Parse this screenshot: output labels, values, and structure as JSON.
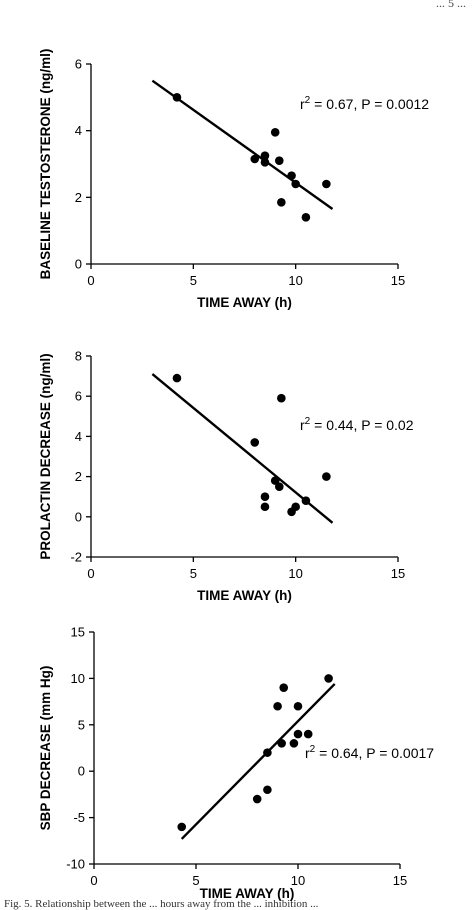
{
  "top_fragment": "... 5 ...",
  "caption_fragment": "Fig. 5. Relationship between the ... hours away from the ... inhibition ...",
  "chart_data": [
    {
      "type": "scatter",
      "title": "",
      "xlabel": "TIME AWAY (h)",
      "ylabel": "BASELINE TESTOSTERONE (ng/ml)",
      "xlim": [
        0,
        15
      ],
      "ylim": [
        0,
        6
      ],
      "xticks": [
        0,
        5,
        10,
        15
      ],
      "yticks": [
        0,
        2,
        4,
        6
      ],
      "annotation": {
        "pre": "r",
        "sup": "2",
        "post": " = 0.67, P = 0.0012"
      },
      "points": [
        {
          "x": 4.2,
          "y": 5.0
        },
        {
          "x": 8.0,
          "y": 3.15
        },
        {
          "x": 8.5,
          "y": 3.25
        },
        {
          "x": 8.5,
          "y": 3.05
        },
        {
          "x": 9.0,
          "y": 3.95
        },
        {
          "x": 9.2,
          "y": 3.1
        },
        {
          "x": 9.3,
          "y": 1.85
        },
        {
          "x": 9.8,
          "y": 2.65
        },
        {
          "x": 10.0,
          "y": 2.4
        },
        {
          "x": 10.5,
          "y": 1.4
        },
        {
          "x": 11.5,
          "y": 2.4
        }
      ],
      "fit": {
        "x": [
          3.0,
          11.8
        ],
        "y": [
          5.5,
          1.65
        ]
      },
      "grid": false,
      "legend": "none"
    },
    {
      "type": "scatter",
      "title": "",
      "xlabel": "TIME AWAY (h)",
      "ylabel": "PROLACTIN DECREASE (ng/ml)",
      "xlim": [
        0,
        15
      ],
      "ylim": [
        -2,
        8
      ],
      "xticks": [
        0,
        5,
        10,
        15
      ],
      "yticks": [
        -2,
        0,
        2,
        4,
        6,
        8
      ],
      "annotation": {
        "pre": "r",
        "sup": "2",
        "post": " = 0.44, P = 0.02"
      },
      "points": [
        {
          "x": 4.2,
          "y": 6.9
        },
        {
          "x": 8.0,
          "y": 3.7
        },
        {
          "x": 8.5,
          "y": 1.0
        },
        {
          "x": 8.5,
          "y": 0.5
        },
        {
          "x": 9.0,
          "y": 1.8
        },
        {
          "x": 9.2,
          "y": 1.5
        },
        {
          "x": 9.3,
          "y": 5.9
        },
        {
          "x": 9.8,
          "y": 0.25
        },
        {
          "x": 10.0,
          "y": 0.5
        },
        {
          "x": 10.5,
          "y": 0.8
        },
        {
          "x": 11.5,
          "y": 2.0
        }
      ],
      "fit": {
        "x": [
          3.0,
          11.8
        ],
        "y": [
          7.1,
          -0.3
        ]
      },
      "grid": false,
      "legend": "none"
    },
    {
      "type": "scatter",
      "title": "",
      "xlabel": "TIME AWAY (h)",
      "ylabel": "SBP DECREASE (mm Hg)",
      "xlim": [
        0,
        15
      ],
      "ylim": [
        -10,
        15
      ],
      "xticks": [
        0,
        5,
        10,
        15
      ],
      "yticks": [
        -10,
        -5,
        0,
        5,
        10,
        15
      ],
      "annotation": {
        "pre": "r",
        "sup": "2",
        "post": " = 0.64, P = 0.0017"
      },
      "points": [
        {
          "x": 4.3,
          "y": -6.0
        },
        {
          "x": 8.0,
          "y": -3.0
        },
        {
          "x": 8.5,
          "y": -2.0
        },
        {
          "x": 8.5,
          "y": 2.0
        },
        {
          "x": 9.0,
          "y": 7.0
        },
        {
          "x": 9.2,
          "y": 3.0
        },
        {
          "x": 9.3,
          "y": 9.0
        },
        {
          "x": 9.8,
          "y": 3.0
        },
        {
          "x": 10.0,
          "y": 7.0
        },
        {
          "x": 10.0,
          "y": 4.0
        },
        {
          "x": 10.5,
          "y": 4.0
        },
        {
          "x": 11.5,
          "y": 10.0
        }
      ],
      "fit": {
        "x": [
          4.3,
          11.8
        ],
        "y": [
          -7.3,
          9.4
        ]
      },
      "grid": false,
      "legend": "none"
    }
  ]
}
